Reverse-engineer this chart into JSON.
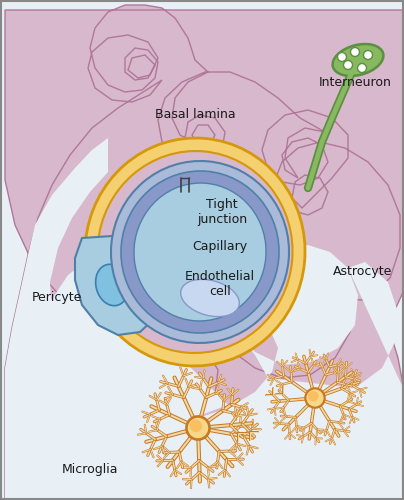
{
  "bg_color": "#e8f0f6",
  "border_color": "#999999",
  "purp_light": "#d8b8cc",
  "purp_dark": "#b07898",
  "purp_mid": "#c4a0b8",
  "gold_light": "#f5d070",
  "gold_dark": "#d4980a",
  "blue_light": "#a8cce0",
  "blue_mid": "#88aed0",
  "blue_dark": "#5080a8",
  "slate_light": "#aabbda",
  "slate_mid": "#8898c8",
  "nuc_color": "#c8d8f0",
  "nuc2_color": "#d8e4f8",
  "green_light": "#b8d898",
  "green_dark": "#5a9040",
  "green_mid": "#88b860",
  "orange_light": "#f8d888",
  "orange_dark": "#c87820",
  "tan_color": "#f0d8a8",
  "peri_blue_light": "#80c0e0",
  "peri_blue_dark": "#3880b0",
  "label_color": "#1a1a1a",
  "label_fontsize": 9,
  "labels": {
    "basal_lamina": "Basal lamina",
    "interneuron": "Interneuron",
    "pericyte": "Pericyte",
    "astrocyte": "Astrocyte",
    "tight_junction": "Tight\njunction",
    "capillary": "Capillary",
    "endothelial_cell": "Endothelial\ncell",
    "microglia": "Microglia"
  }
}
